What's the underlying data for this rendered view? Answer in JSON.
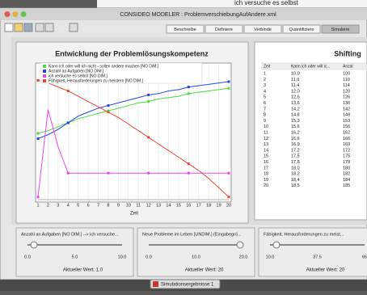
{
  "background_text": "ich versuche es selbst",
  "window_title": "CONSIDEO MODELER : ProblemverschiebungAufAndere.xml",
  "tabs": [
    "Beschreibe",
    "Definiere",
    "Verbinde",
    "Quantifiziere",
    "Simuliere"
  ],
  "chart_data": {
    "type": "line",
    "title": "Entwicklung der Problemlösungskompetenz",
    "x_label": "Zeit",
    "x": [
      1,
      2,
      3,
      4,
      5,
      6,
      7,
      8,
      9,
      10,
      11,
      12,
      13,
      14,
      15,
      16,
      17,
      18,
      19,
      20
    ],
    "xlim": [
      1,
      20
    ],
    "xticks": [
      1,
      2,
      3,
      4,
      5,
      6,
      7,
      8,
      9,
      10,
      11,
      12,
      13,
      14,
      15,
      16,
      17,
      18,
      19,
      20
    ],
    "ylim": [
      0,
      100
    ],
    "grid": true,
    "series": [
      {
        "name": "Kann ich oder will ich nicht - sollen andere machen [NO DIM.]",
        "color": "#44dd44",
        "values": [
          50,
          52,
          55,
          58,
          61,
          63,
          65,
          67,
          69,
          71,
          73,
          74,
          76,
          77,
          78,
          80,
          81,
          82,
          83,
          84
        ]
      },
      {
        "name": "Anzahl an Aufgaben [NO DIM.]",
        "color": "#2244ee",
        "values": [
          46,
          49,
          53,
          58,
          63,
          66,
          69,
          71,
          73,
          75,
          77,
          79,
          80,
          82,
          83,
          85,
          86,
          87,
          88,
          89
        ]
      },
      {
        "name": "ich versuche es selbst [NO DIM.]",
        "color": "#ee44ee",
        "values": [
          2,
          68,
          40,
          20,
          20,
          20,
          20,
          20,
          20,
          20,
          20,
          20,
          20,
          20,
          20,
          20,
          20,
          20,
          20,
          20
        ]
      },
      {
        "name": "Fähigkeit, Herausforderungen zu meistern [NO DIM.]",
        "color": "#ee4433",
        "values": [
          90,
          88,
          85,
          82,
          78,
          74,
          70,
          66,
          62,
          57,
          52,
          47,
          42,
          37,
          32,
          27,
          22,
          16,
          9,
          2
        ]
      }
    ]
  },
  "table": {
    "title": "Shifting",
    "header": [
      "Zeit",
      "Kann ich oder will ic...",
      "Anzal"
    ],
    "rows": [
      [
        "1",
        "10,0",
        "100"
      ],
      [
        "2",
        "11,0",
        "110"
      ],
      [
        "3",
        "11,4",
        "114"
      ],
      [
        "4",
        "12,0",
        "120"
      ],
      [
        "5",
        "12,6",
        "126"
      ],
      [
        "6",
        "13,6",
        "136"
      ],
      [
        "7",
        "14,2",
        "142"
      ],
      [
        "8",
        "14,8",
        "148"
      ],
      [
        "9",
        "15,3",
        "153"
      ],
      [
        "10",
        "15,6",
        "156"
      ],
      [
        "11",
        "16,2",
        "162"
      ],
      [
        "12",
        "16,6",
        "166"
      ],
      [
        "13",
        "16,9",
        "169"
      ],
      [
        "14",
        "17,2",
        "172"
      ],
      [
        "15",
        "17,5",
        "175"
      ],
      [
        "16",
        "17,8",
        "178"
      ],
      [
        "17",
        "18,0",
        "180"
      ],
      [
        "18",
        "18,2",
        "182"
      ],
      [
        "19",
        "18,4",
        "184"
      ],
      [
        "20",
        "18,5",
        "185"
      ]
    ]
  },
  "sliders": [
    {
      "label": "Anzahl an Aufgaben [NO DIM.] --> ich versuche...",
      "scale": [
        "0.0",
        "5.0",
        "10.0"
      ],
      "current": "Aktueller Wert: 1.0"
    },
    {
      "label": "Neue Probleme im Leben [UNDIM.] (Eingabegrö...",
      "scale": [
        "0.0",
        "10.0",
        "20.0"
      ],
      "current": "Aktueller Wert: 20"
    },
    {
      "label": "Fähigkeit, Herausforderungen zu meist...",
      "scale": [
        "10.0",
        "37.5",
        "65"
      ],
      "current": "Aktueller Wert: 20"
    }
  ],
  "bottom_button": "Simulationsergebnisse 1"
}
